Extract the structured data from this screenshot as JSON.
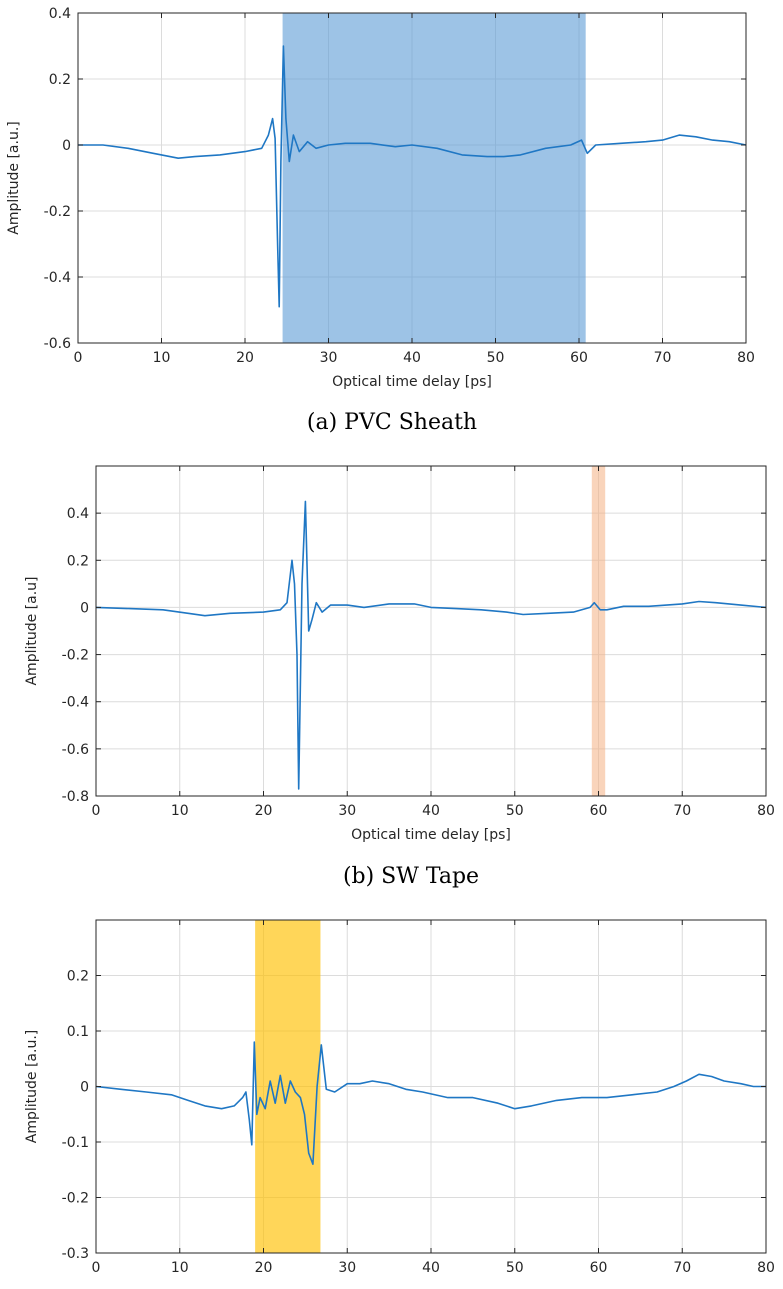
{
  "chart_data": [
    {
      "type": "line",
      "xlabel": "Optical time delay [ps]",
      "ylabel": "Amplitude [a.u.]",
      "caption": "(a) PVC Sheath",
      "xlim": [
        0,
        80
      ],
      "ylim": [
        -0.6,
        0.4
      ],
      "xticks": [
        0,
        10,
        20,
        30,
        40,
        50,
        60,
        70,
        80
      ],
      "yticks": [
        -0.6,
        -0.4,
        -0.2,
        0,
        0.2,
        0.4
      ],
      "ytick_labels": [
        "-0.6",
        "-0.4",
        "-0.2",
        "0",
        "0.2",
        "0.4"
      ],
      "grid": true,
      "highlight": {
        "x_start": 24.5,
        "x_end": 60.8,
        "color": "#5b9bd5",
        "opacity": 0.6
      },
      "series": [
        {
          "color": "#1f77c4",
          "x": [
            0,
            3,
            6,
            9,
            12,
            14,
            17,
            20,
            22,
            22.8,
            23.3,
            23.6,
            23.9,
            24.1,
            24.3,
            24.6,
            24.9,
            25.3,
            25.8,
            26.5,
            27.5,
            28.5,
            30,
            32,
            35,
            38,
            40,
            43,
            46,
            49,
            51,
            53,
            56,
            59,
            60.3,
            61,
            62,
            65,
            68,
            70,
            72,
            74,
            76,
            78,
            80
          ],
          "y": [
            0.0,
            0.0,
            -0.01,
            -0.025,
            -0.04,
            -0.035,
            -0.03,
            -0.02,
            -0.01,
            0.03,
            0.08,
            0.02,
            -0.3,
            -0.49,
            -0.05,
            0.3,
            0.08,
            -0.05,
            0.03,
            -0.02,
            0.01,
            -0.01,
            0.0,
            0.005,
            0.005,
            -0.005,
            0.0,
            -0.01,
            -0.03,
            -0.035,
            -0.035,
            -0.03,
            -0.01,
            0.0,
            0.015,
            -0.025,
            0.0,
            0.005,
            0.01,
            0.015,
            0.03,
            0.025,
            0.015,
            0.01,
            0.0
          ]
        }
      ]
    },
    {
      "type": "line",
      "xlabel": "Optical time delay [ps]",
      "ylabel": "Amplitude [a.u]",
      "caption": "(b) SW Tape",
      "xlim": [
        0,
        80
      ],
      "ylim": [
        -0.8,
        0.6
      ],
      "xticks": [
        0,
        10,
        20,
        30,
        40,
        50,
        60,
        70,
        80
      ],
      "yticks": [
        -0.8,
        -0.6,
        -0.4,
        -0.2,
        0,
        0.2,
        0.4
      ],
      "ytick_labels": [
        "-0.8",
        "-0.6",
        "-0.4",
        "-0.2",
        "0",
        "0.2",
        "0.4"
      ],
      "grid": true,
      "highlight": {
        "x_start": 59.2,
        "x_end": 60.8,
        "color": "#f4b183",
        "opacity": 0.55
      },
      "series": [
        {
          "color": "#1f77c4",
          "x": [
            0,
            4,
            8,
            11,
            13,
            16,
            20,
            22,
            22.8,
            23.4,
            23.7,
            24.0,
            24.2,
            24.6,
            25.0,
            25.4,
            25.8,
            26.3,
            27,
            28,
            30,
            32,
            35,
            38,
            40,
            43,
            46,
            49,
            51,
            54,
            57,
            59,
            59.5,
            60.2,
            61,
            63,
            66,
            70,
            72,
            74,
            77,
            80
          ],
          "y": [
            0.0,
            -0.005,
            -0.01,
            -0.025,
            -0.035,
            -0.025,
            -0.02,
            -0.01,
            0.02,
            0.2,
            0.1,
            -0.2,
            -0.77,
            0.1,
            0.45,
            -0.1,
            -0.05,
            0.02,
            -0.02,
            0.01,
            0.01,
            0.0,
            0.015,
            0.015,
            0.0,
            -0.005,
            -0.01,
            -0.02,
            -0.03,
            -0.025,
            -0.02,
            0.0,
            0.02,
            -0.01,
            -0.01,
            0.005,
            0.005,
            0.015,
            0.025,
            0.02,
            0.01,
            0.0
          ]
        }
      ]
    },
    {
      "type": "line",
      "xlabel": "",
      "ylabel": "Amplitude [a.u.]",
      "caption": "",
      "xlim": [
        0,
        80
      ],
      "ylim": [
        -0.3,
        0.3
      ],
      "xticks": [
        0,
        10,
        20,
        30,
        40,
        50,
        60,
        70,
        80
      ],
      "yticks": [
        -0.3,
        -0.2,
        -0.1,
        0,
        0.1,
        0.2
      ],
      "ytick_labels": [
        "-0.3",
        "-0.2",
        "-0.1",
        "0",
        "0.1",
        "0.2"
      ],
      "grid": true,
      "highlight": {
        "x_start": 19.0,
        "x_end": 26.8,
        "color": "#ffc000",
        "opacity": 0.65
      },
      "series": [
        {
          "color": "#1f77c4",
          "x": [
            0,
            3,
            6,
            9,
            11,
            13,
            15,
            16.5,
            17.5,
            17.9,
            18.3,
            18.6,
            18.9,
            19.2,
            19.6,
            20.2,
            20.8,
            21.4,
            22,
            22.6,
            23.2,
            23.8,
            24.4,
            24.9,
            25.4,
            25.9,
            26.4,
            26.9,
            27.5,
            28.5,
            30,
            31.5,
            33,
            35,
            37,
            39,
            42,
            45,
            48,
            50,
            52,
            55,
            58,
            61,
            64,
            67,
            69,
            70.5,
            72,
            73.5,
            75,
            77,
            78.5,
            80
          ],
          "y": [
            0.0,
            -0.005,
            -0.01,
            -0.015,
            -0.025,
            -0.035,
            -0.04,
            -0.035,
            -0.02,
            -0.01,
            -0.06,
            -0.105,
            0.08,
            -0.05,
            -0.02,
            -0.04,
            0.01,
            -0.03,
            0.02,
            -0.03,
            0.01,
            -0.01,
            -0.02,
            -0.05,
            -0.12,
            -0.14,
            0.0,
            0.075,
            -0.005,
            -0.01,
            0.005,
            0.005,
            0.01,
            0.005,
            -0.005,
            -0.01,
            -0.02,
            -0.02,
            -0.03,
            -0.04,
            -0.035,
            -0.025,
            -0.02,
            -0.02,
            -0.015,
            -0.01,
            0.0,
            0.01,
            0.022,
            0.018,
            0.01,
            0.005,
            0.0,
            0.0
          ]
        }
      ]
    }
  ],
  "panels_layout_note_free": true
}
